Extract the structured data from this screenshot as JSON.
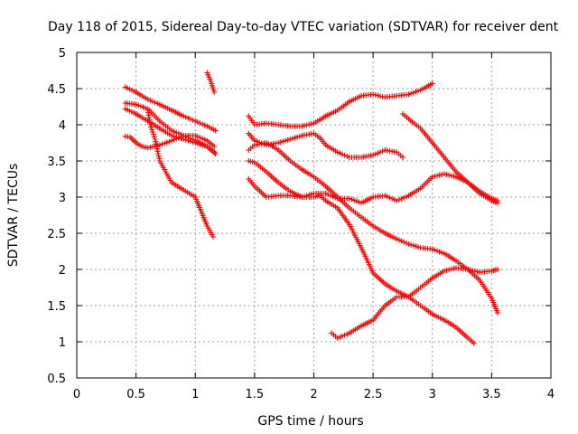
{
  "chart_data": {
    "type": "scatter",
    "title": "Day 118 of 2015, Sidereal Day-to-day VTEC variation (SDTVAR) for receiver dent",
    "xlabel": "GPS time / hours",
    "ylabel": "SDTVAR / TECUs",
    "xlim": [
      0,
      4
    ],
    "ylim": [
      0.5,
      5
    ],
    "xticks": [
      "0",
      "0.5",
      "1",
      "1.5",
      "2",
      "2.5",
      "3",
      "3.5",
      "4"
    ],
    "yticks": [
      "0.5",
      "1",
      "1.5",
      "2",
      "2.5",
      "3",
      "3.5",
      "4",
      "4.5",
      "5"
    ],
    "grid": true,
    "marker": "+",
    "color": "#ff0000",
    "series": [
      {
        "points": [
          [
            0.41,
            4.52
          ],
          [
            0.5,
            4.45
          ],
          [
            0.6,
            4.35
          ],
          [
            0.7,
            4.28
          ],
          [
            0.8,
            4.2
          ],
          [
            0.9,
            4.12
          ],
          [
            1.0,
            4.05
          ],
          [
            1.1,
            3.98
          ],
          [
            1.17,
            3.92
          ]
        ]
      },
      {
        "points": [
          [
            0.41,
            4.3
          ],
          [
            0.5,
            4.28
          ],
          [
            0.6,
            4.22
          ],
          [
            0.7,
            4.05
          ],
          [
            0.8,
            3.92
          ],
          [
            0.9,
            3.85
          ],
          [
            1.0,
            3.78
          ],
          [
            1.1,
            3.7
          ],
          [
            1.16,
            3.62
          ]
        ]
      },
      {
        "points": [
          [
            0.41,
            4.22
          ],
          [
            0.5,
            4.15
          ],
          [
            0.6,
            4.05
          ],
          [
            0.7,
            3.95
          ],
          [
            0.8,
            3.85
          ],
          [
            0.9,
            3.8
          ],
          [
            1.0,
            3.75
          ],
          [
            1.1,
            3.7
          ],
          [
            1.17,
            3.6
          ]
        ]
      },
      {
        "points": [
          [
            0.41,
            3.84
          ],
          [
            0.45,
            3.83
          ],
          [
            0.5,
            3.75
          ],
          [
            0.55,
            3.7
          ],
          [
            0.6,
            3.68
          ],
          [
            0.7,
            3.72
          ],
          [
            0.8,
            3.78
          ],
          [
            0.9,
            3.85
          ],
          [
            1.0,
            3.85
          ],
          [
            1.1,
            3.78
          ],
          [
            1.16,
            3.7
          ]
        ]
      },
      {
        "points": [
          [
            0.6,
            4.2
          ],
          [
            0.62,
            4.0
          ],
          [
            0.66,
            3.8
          ],
          [
            0.7,
            3.5
          ],
          [
            0.75,
            3.35
          ],
          [
            0.8,
            3.2
          ],
          [
            0.9,
            3.1
          ],
          [
            1.0,
            3.0
          ],
          [
            1.05,
            2.8
          ],
          [
            1.1,
            2.6
          ],
          [
            1.15,
            2.45
          ]
        ]
      },
      {
        "points": [
          [
            1.1,
            4.72
          ],
          [
            1.13,
            4.6
          ],
          [
            1.16,
            4.45
          ]
        ]
      },
      {
        "points": [
          [
            1.45,
            4.12
          ],
          [
            1.5,
            4.0
          ],
          [
            1.6,
            4.02
          ],
          [
            1.7,
            4.0
          ],
          [
            1.8,
            3.98
          ],
          [
            1.9,
            3.98
          ],
          [
            2.0,
            4.02
          ],
          [
            2.1,
            4.12
          ],
          [
            2.2,
            4.2
          ],
          [
            2.3,
            4.32
          ],
          [
            2.4,
            4.4
          ],
          [
            2.5,
            4.42
          ],
          [
            2.6,
            4.38
          ],
          [
            2.7,
            4.4
          ],
          [
            2.8,
            4.42
          ],
          [
            2.9,
            4.48
          ],
          [
            3.0,
            4.57
          ]
        ]
      },
      {
        "points": [
          [
            1.45,
            3.88
          ],
          [
            1.5,
            3.78
          ],
          [
            1.6,
            3.72
          ],
          [
            1.7,
            3.75
          ],
          [
            1.8,
            3.8
          ],
          [
            1.9,
            3.85
          ],
          [
            2.0,
            3.88
          ],
          [
            2.05,
            3.82
          ],
          [
            2.1,
            3.72
          ],
          [
            2.2,
            3.62
          ],
          [
            2.3,
            3.55
          ],
          [
            2.4,
            3.55
          ],
          [
            2.5,
            3.58
          ],
          [
            2.6,
            3.65
          ],
          [
            2.7,
            3.62
          ],
          [
            2.75,
            3.55
          ]
        ]
      },
      {
        "points": [
          [
            1.45,
            3.65
          ],
          [
            1.5,
            3.72
          ],
          [
            1.6,
            3.75
          ],
          [
            1.7,
            3.65
          ],
          [
            1.8,
            3.5
          ],
          [
            1.9,
            3.38
          ],
          [
            2.0,
            3.28
          ],
          [
            2.1,
            3.15
          ],
          [
            2.2,
            3.0
          ],
          [
            2.3,
            2.85
          ],
          [
            2.4,
            2.72
          ],
          [
            2.5,
            2.6
          ],
          [
            2.6,
            2.5
          ],
          [
            2.7,
            2.42
          ],
          [
            2.8,
            2.35
          ],
          [
            2.9,
            2.3
          ],
          [
            3.0,
            2.28
          ],
          [
            3.1,
            2.22
          ],
          [
            3.2,
            2.12
          ],
          [
            3.3,
            2.0
          ],
          [
            3.4,
            1.85
          ],
          [
            3.5,
            1.6
          ],
          [
            3.55,
            1.4
          ]
        ]
      },
      {
        "points": [
          [
            1.45,
            3.25
          ],
          [
            1.5,
            3.15
          ],
          [
            1.6,
            3.0
          ],
          [
            1.7,
            3.02
          ],
          [
            1.8,
            3.02
          ],
          [
            1.9,
            3.0
          ],
          [
            2.0,
            3.0
          ],
          [
            2.05,
            3.02
          ],
          [
            2.1,
            2.95
          ],
          [
            2.2,
            2.85
          ],
          [
            2.3,
            2.62
          ],
          [
            2.4,
            2.3
          ],
          [
            2.5,
            1.95
          ],
          [
            2.6,
            1.8
          ],
          [
            2.7,
            1.7
          ],
          [
            2.8,
            1.62
          ],
          [
            2.9,
            1.5
          ],
          [
            3.0,
            1.38
          ],
          [
            3.1,
            1.3
          ],
          [
            3.2,
            1.2
          ],
          [
            3.3,
            1.05
          ],
          [
            3.35,
            0.98
          ]
        ]
      },
      {
        "points": [
          [
            1.45,
            3.5
          ],
          [
            1.5,
            3.48
          ],
          [
            1.6,
            3.35
          ],
          [
            1.7,
            3.2
          ],
          [
            1.8,
            3.08
          ],
          [
            1.9,
            3.0
          ],
          [
            2.0,
            3.05
          ],
          [
            2.1,
            3.05
          ],
          [
            2.2,
            2.98
          ],
          [
            2.3,
            2.98
          ],
          [
            2.4,
            2.92
          ],
          [
            2.5,
            3.0
          ],
          [
            2.6,
            3.02
          ],
          [
            2.7,
            2.95
          ],
          [
            2.8,
            3.02
          ],
          [
            2.9,
            3.12
          ],
          [
            3.0,
            3.28
          ],
          [
            3.1,
            3.32
          ],
          [
            3.2,
            3.28
          ],
          [
            3.3,
            3.2
          ],
          [
            3.4,
            3.08
          ],
          [
            3.5,
            2.98
          ],
          [
            3.55,
            2.95
          ]
        ]
      },
      {
        "points": [
          [
            2.15,
            1.12
          ],
          [
            2.2,
            1.05
          ],
          [
            2.3,
            1.12
          ],
          [
            2.4,
            1.22
          ],
          [
            2.5,
            1.3
          ],
          [
            2.55,
            1.4
          ],
          [
            2.6,
            1.5
          ],
          [
            2.7,
            1.62
          ],
          [
            2.8,
            1.62
          ],
          [
            2.9,
            1.75
          ],
          [
            3.0,
            1.88
          ],
          [
            3.1,
            1.98
          ],
          [
            3.2,
            2.02
          ],
          [
            3.3,
            2.0
          ],
          [
            3.4,
            1.96
          ],
          [
            3.5,
            1.98
          ],
          [
            3.55,
            2.0
          ]
        ]
      },
      {
        "points": [
          [
            2.75,
            4.15
          ],
          [
            2.8,
            4.08
          ],
          [
            2.9,
            3.95
          ],
          [
            3.0,
            3.75
          ],
          [
            3.1,
            3.55
          ],
          [
            3.2,
            3.35
          ],
          [
            3.3,
            3.2
          ],
          [
            3.4,
            3.05
          ],
          [
            3.5,
            2.95
          ],
          [
            3.55,
            2.92
          ]
        ]
      }
    ]
  }
}
